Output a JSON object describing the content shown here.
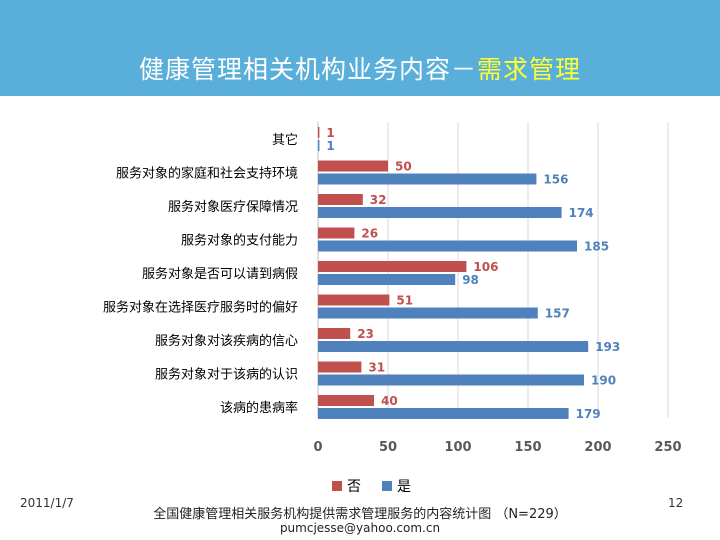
{
  "slide": {
    "title_prefix": "健康管理相关机构业务内容－",
    "title_accent": "需求管理",
    "footer_date": "2011/1/7",
    "page_number": "12",
    "caption": "全国健康管理相关服务机构提供需求管理服务的内容统计图 （N=229）",
    "author_email": "pumcjesse@yahoo.com.cn"
  },
  "colors": {
    "header": "#5aafda",
    "accent": "#ffff33",
    "no": "#c0504d",
    "yes": "#4f81bd"
  },
  "chart_data": {
    "type": "bar",
    "orientation": "horizontal",
    "title": "",
    "xlabel": "",
    "ylabel": "",
    "categories": [
      "其它",
      "服务对象的家庭和社会支持环境",
      "服务对象医疗保障情况",
      "服务对象的支付能力",
      "服务对象是否可以请到病假",
      "服务对象在选择医疗服务时的偏好",
      "服务对象对该疾病的信心",
      "服务对象对于该病的认识",
      "该病的患病率"
    ],
    "series": [
      {
        "name": "否",
        "color": "#c0504d",
        "values": [
          1,
          50,
          32,
          26,
          106,
          51,
          23,
          31,
          40
        ]
      },
      {
        "name": "是",
        "color": "#4f81bd",
        "values": [
          1,
          156,
          174,
          185,
          98,
          157,
          193,
          190,
          179
        ]
      }
    ],
    "xlim": [
      0,
      250
    ],
    "xticks": [
      0,
      50,
      100,
      150,
      200,
      250
    ],
    "grid": true,
    "legend_position": "bottom"
  }
}
